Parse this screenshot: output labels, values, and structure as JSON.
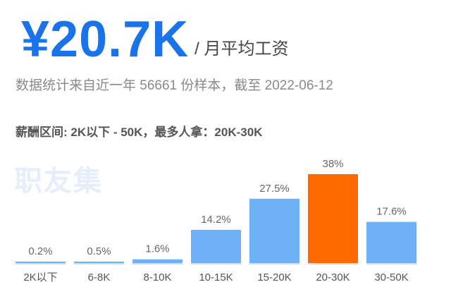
{
  "header": {
    "salary_value": "¥20.7K",
    "salary_unit": "/ 月平均工资",
    "stats_line": "数据统计来自近一年 56661 份样本，截至 2022-06-12",
    "range_line": "薪酬区间: 2K以下 - 50K，最多人拿：20K-30K",
    "watermark": "职友集"
  },
  "colors": {
    "accent": "#1a73e8",
    "bar": "#6fb1f7",
    "bar_highlight": "#ff6a00",
    "axis": "#cfdcef"
  },
  "chart_data": {
    "type": "bar",
    "categories": [
      "2K以下",
      "6-8K",
      "8-10K",
      "10-15K",
      "15-20K",
      "20-30K",
      "30-50K"
    ],
    "values": [
      0.2,
      0.5,
      1.6,
      14.2,
      27.5,
      38,
      17.6
    ],
    "value_labels": [
      "0.2%",
      "0.5%",
      "1.6%",
      "14.2%",
      "27.5%",
      "38%",
      "17.6%"
    ],
    "highlight_index": 5,
    "ylim": [
      0,
      38
    ],
    "grid": false,
    "xlabel": "",
    "ylabel": ""
  }
}
